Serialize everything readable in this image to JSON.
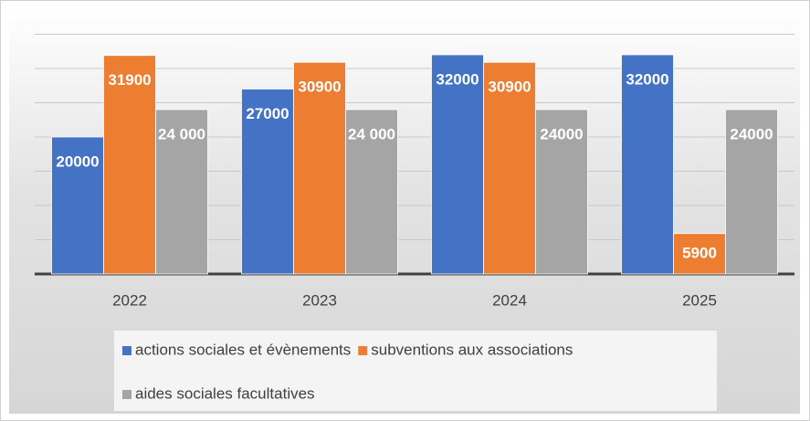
{
  "chart_data": {
    "type": "bar",
    "categories": [
      "2022",
      "2023",
      "2024",
      "2025"
    ],
    "series": [
      {
        "name": "actions sociales et évènements",
        "color": "#4472c4",
        "values": [
          20000,
          27000,
          32000,
          32000
        ]
      },
      {
        "name": "subventions aux associations",
        "color": "#ed7d31",
        "values": [
          31900,
          30900,
          30900,
          5900
        ]
      },
      {
        "name": "aides sociales facultatives",
        "color": "#a5a5a5",
        "values": [
          24000,
          24000,
          24000,
          24000
        ],
        "value_labels": [
          "24 000",
          "24 000",
          "24000",
          "24000"
        ]
      }
    ],
    "ylim": [
      0,
      35000
    ],
    "yticks": [
      0,
      5000,
      10000,
      15000,
      20000,
      25000,
      30000,
      35000
    ],
    "grid": true,
    "legend": "bottom"
  }
}
